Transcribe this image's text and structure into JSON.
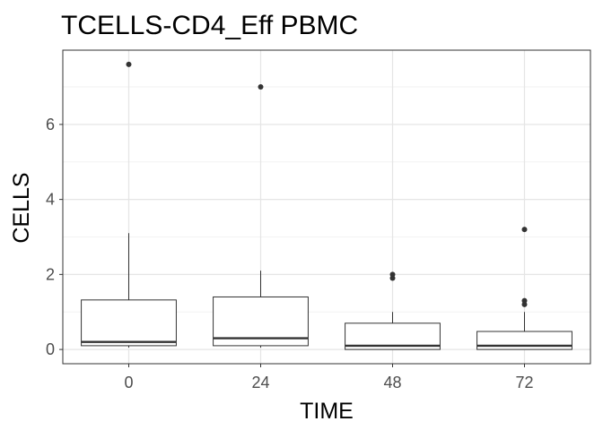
{
  "chart_data": {
    "type": "box",
    "title": "TCELLS-CD4_Eff PBMC",
    "xlabel": "TIME",
    "ylabel": "CELLS",
    "categories": [
      "0",
      "24",
      "48",
      "72"
    ],
    "y_ticks": [
      0,
      2,
      4,
      6
    ],
    "ylim": [
      -0.38,
      7.98
    ],
    "grid": true,
    "boxes": [
      {
        "category": "0",
        "lower_whisker": 0.05,
        "q1": 0.1,
        "median": 0.2,
        "q3": 1.32,
        "upper_whisker": 3.1,
        "outliers": [
          7.6
        ]
      },
      {
        "category": "24",
        "lower_whisker": 0.05,
        "q1": 0.1,
        "median": 0.3,
        "q3": 1.4,
        "upper_whisker": 2.1,
        "outliers": [
          7.0
        ]
      },
      {
        "category": "48",
        "lower_whisker": 0.0,
        "q1": 0.0,
        "median": 0.1,
        "q3": 0.7,
        "upper_whisker": 1.0,
        "outliers": [
          1.9,
          2.0
        ]
      },
      {
        "category": "72",
        "lower_whisker": 0.0,
        "q1": 0.0,
        "median": 0.1,
        "q3": 0.48,
        "upper_whisker": 1.0,
        "outliers": [
          1.2,
          1.3,
          3.2
        ]
      }
    ]
  }
}
